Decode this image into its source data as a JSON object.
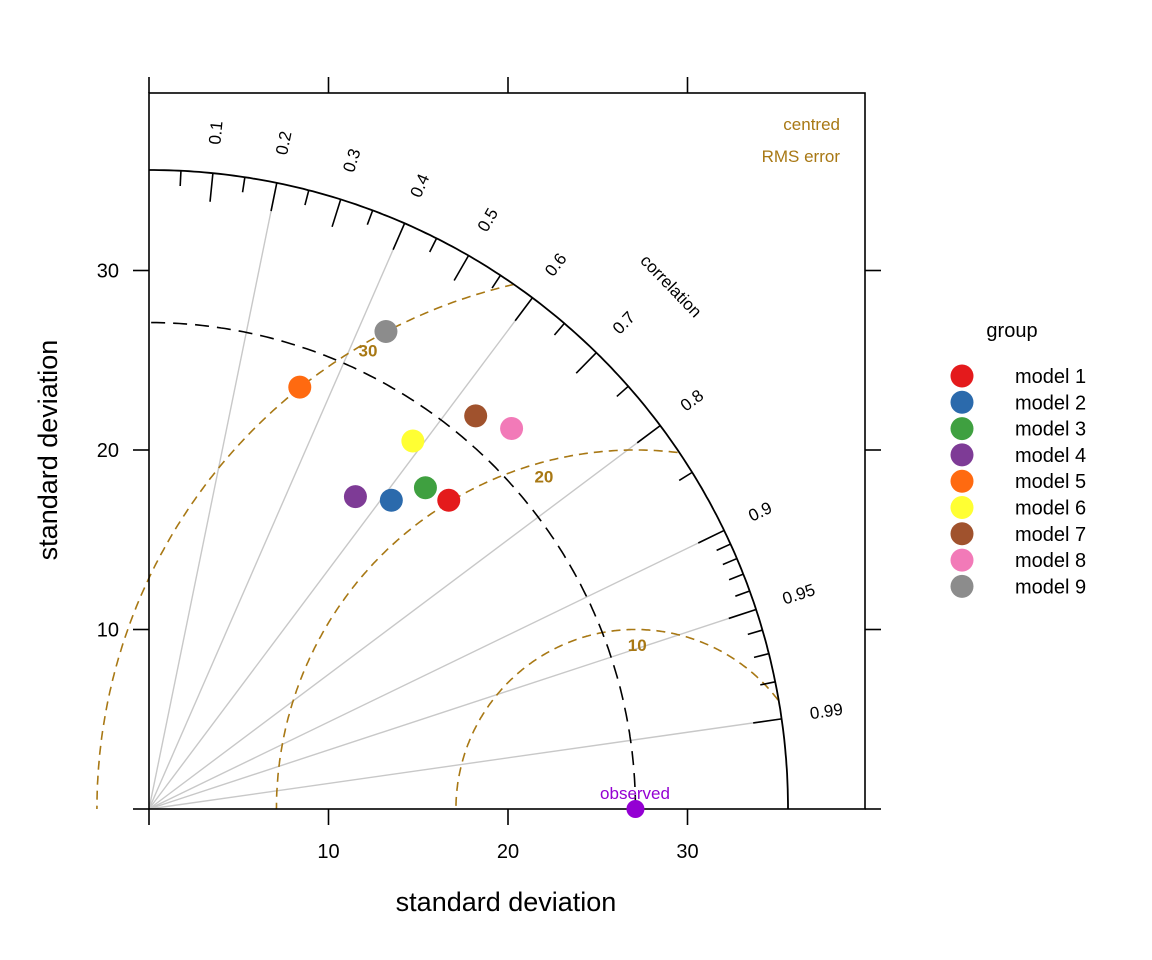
{
  "chart_data": {
    "type": "scatter",
    "subtype": "taylor-diagram",
    "x_axis": {
      "title": "standard deviation",
      "ticks": [
        10,
        20,
        30
      ],
      "range": [
        0,
        39.9
      ]
    },
    "y_axis": {
      "title": "standard deviation",
      "ticks": [
        10,
        20,
        30
      ],
      "range": [
        0,
        39.9
      ]
    },
    "correlation": {
      "title": "correlation",
      "labels": [
        "0.1",
        "0.2",
        "0.3",
        "0.4",
        "0.5",
        "0.6",
        "0.7",
        "0.8",
        "0.9",
        "0.95",
        "0.99"
      ],
      "major_values": [
        0.1,
        0.2,
        0.3,
        0.4,
        0.5,
        0.6,
        0.7,
        0.8,
        0.9,
        0.95,
        0.99
      ],
      "gridline_values": [
        0.2,
        0.4,
        0.6,
        0.8,
        0.9,
        0.95,
        0.99
      ],
      "outer_radius": 35.6
    },
    "rms_note": [
      "centred",
      "RMS error"
    ],
    "rms_contours": {
      "values": [
        10,
        20,
        30
      ],
      "labels": [
        "10",
        "20",
        "30"
      ]
    },
    "observed": {
      "label": "observed",
      "sd": 27.1,
      "color": "#9400d3"
    },
    "grid": false,
    "legend": {
      "title": "group",
      "position": "right",
      "items": [
        {
          "name": "model 1",
          "color": "#e41a1c"
        },
        {
          "name": "model 2",
          "color": "#2b6aac"
        },
        {
          "name": "model 3",
          "color": "#3fa040"
        },
        {
          "name": "model 4",
          "color": "#7e3b96"
        },
        {
          "name": "model 5",
          "color": "#ff6a10"
        },
        {
          "name": "model 6",
          "color": "#ffff33"
        },
        {
          "name": "model 7",
          "color": "#a0522d"
        },
        {
          "name": "model 8",
          "color": "#f27ab8"
        },
        {
          "name": "model 9",
          "color": "#8c8c8c"
        }
      ]
    },
    "series": [
      {
        "name": "model 1",
        "x": 16.7,
        "y": 17.2
      },
      {
        "name": "model 2",
        "x": 13.5,
        "y": 17.2
      },
      {
        "name": "model 3",
        "x": 15.4,
        "y": 17.9
      },
      {
        "name": "model 4",
        "x": 11.5,
        "y": 17.4
      },
      {
        "name": "model 5",
        "x": 8.4,
        "y": 23.5
      },
      {
        "name": "model 6",
        "x": 14.7,
        "y": 20.5
      },
      {
        "name": "model 7",
        "x": 18.2,
        "y": 21.9
      },
      {
        "name": "model 8",
        "x": 20.2,
        "y": 21.2
      },
      {
        "name": "model 9",
        "x": 13.2,
        "y": 26.6
      }
    ],
    "colors": {
      "rms": "#a87814",
      "correlation_grid": "#c8c8c8",
      "observed_arc": "#000000"
    }
  }
}
